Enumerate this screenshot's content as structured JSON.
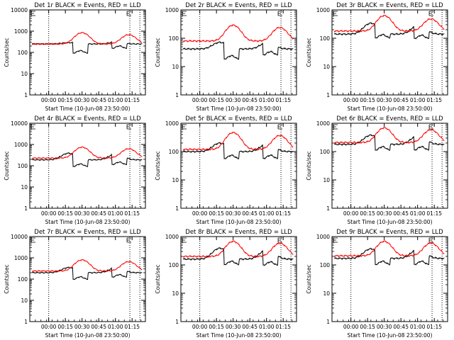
{
  "chart_data": [
    {
      "type": "line",
      "title": "Det 1r BLACK = Events, RED = LLD",
      "xlabel": "Start Time (10-Jun-08 23:50:00)",
      "ylabel": "Counts/sec",
      "y_scale": "log",
      "ylim": [
        1,
        10000
      ],
      "y_ticks": [
        "1",
        "10",
        "100",
        "1000",
        "10000"
      ],
      "x_ticks": [
        "00:00",
        "00:15",
        "00:30",
        "00:45",
        "01:00",
        "01:15"
      ],
      "xlim_minutes": [
        -7,
        97
      ],
      "vlines_minutes": [
        10,
        83,
        92
      ],
      "series": [
        {
          "color": "#000000",
          "base": 250,
          "gaps": [
            [
              32,
              45,
              90
            ],
            [
              67,
              80,
              150
            ]
          ],
          "wiggles": [
            [
              28,
              40
            ],
            [
              71,
              60
            ]
          ]
        },
        {
          "color": "#ff0000",
          "base": 250,
          "wiggles": [
            [
              40,
              600
            ],
            [
              82,
              430
            ]
          ]
        }
      ]
    },
    {
      "type": "line",
      "title": "Det 2r BLACK = Events, RED = LLD",
      "xlabel": "Start Time (10-Jun-08 23:50:00)",
      "ylabel": "Counts/sec",
      "y_scale": "log",
      "ylim": [
        1,
        1000
      ],
      "y_ticks": [
        "1",
        "10",
        "100",
        "1000"
      ],
      "x_ticks": [
        "00:00",
        "00:15",
        "00:30",
        "00:45",
        "01:00",
        "01:15"
      ],
      "xlim_minutes": [
        -7,
        97
      ],
      "vlines_minutes": [
        10,
        83,
        92
      ],
      "series": [
        {
          "color": "#000000",
          "base": 42,
          "gaps": [
            [
              32,
              45,
              18
            ],
            [
              67,
              80,
              25
            ]
          ],
          "wiggles": [
            [
              28,
              30
            ],
            [
              71,
              30
            ]
          ]
        },
        {
          "color": "#ff0000",
          "base": 80,
          "wiggles": [
            [
              40,
              210
            ],
            [
              82,
              160
            ]
          ]
        }
      ]
    },
    {
      "type": "line",
      "title": "Det 3r BLACK = Events, RED = LLD",
      "xlabel": "Start Time (10-Jun-08 23:50:00)",
      "ylabel": "Counts/sec",
      "y_scale": "log",
      "ylim": [
        1,
        1000
      ],
      "y_ticks": [
        "1",
        "10",
        "100",
        "1000"
      ],
      "x_ticks": [
        "00:00",
        "00:15",
        "00:30",
        "00:45",
        "01:00",
        "01:15"
      ],
      "xlim_minutes": [
        -7,
        97
      ],
      "vlines_minutes": [
        10,
        83,
        92
      ],
      "series": [
        {
          "color": "#000000",
          "base": 140,
          "gaps": [
            [
              32,
              45,
              100
            ],
            [
              67,
              80,
              95
            ]
          ],
          "wiggles": [
            [
              28,
              200
            ],
            [
              71,
              150
            ]
          ]
        },
        {
          "color": "#ff0000",
          "base": 180,
          "wiggles": [
            [
              40,
              450
            ],
            [
              82,
              300
            ]
          ]
        }
      ]
    },
    {
      "type": "line",
      "title": "Det 4r BLACK = Events, RED = LLD",
      "xlabel": "Start Time (10-Jun-08 23:50:00)",
      "ylabel": "Counts/sec",
      "y_scale": "log",
      "ylim": [
        1,
        10000
      ],
      "y_ticks": [
        "1",
        "10",
        "100",
        "1000",
        "10000"
      ],
      "x_ticks": [
        "00:00",
        "00:15",
        "00:30",
        "00:45",
        "01:00",
        "01:15"
      ],
      "xlim_minutes": [
        -7,
        97
      ],
      "vlines_minutes": [
        10,
        83,
        92
      ],
      "series": [
        {
          "color": "#000000",
          "base": 190,
          "gaps": [
            [
              32,
              45,
              90
            ],
            [
              67,
              80,
              110
            ]
          ],
          "wiggles": [
            [
              28,
              200
            ],
            [
              71,
              180
            ]
          ]
        },
        {
          "color": "#ff0000",
          "base": 230,
          "wiggles": [
            [
              40,
              520
            ],
            [
              82,
              400
            ]
          ]
        }
      ]
    },
    {
      "type": "line",
      "title": "Det 5r BLACK = Events, RED = LLD",
      "xlabel": "Start Time (10-Jun-08 23:50:00)",
      "ylabel": "Counts/sec",
      "y_scale": "log",
      "ylim": [
        1,
        1000
      ],
      "y_ticks": [
        "1",
        "10",
        "100",
        "1000"
      ],
      "x_ticks": [
        "00:00",
        "00:15",
        "00:30",
        "00:45",
        "01:00",
        "01:15"
      ],
      "xlim_minutes": [
        -7,
        97
      ],
      "vlines_minutes": [
        10,
        83,
        92
      ],
      "series": [
        {
          "color": "#000000",
          "base": 100,
          "gaps": [
            [
              32,
              45,
              55
            ],
            [
              67,
              80,
              55
            ]
          ],
          "wiggles": [
            [
              28,
              100
            ],
            [
              71,
              90
            ]
          ]
        },
        {
          "color": "#ff0000",
          "base": 120,
          "wiggles": [
            [
              40,
              350
            ],
            [
              82,
              250
            ]
          ]
        }
      ]
    },
    {
      "type": "line",
      "title": "Det 6r BLACK = Events, RED = LLD",
      "xlabel": "Start Time (10-Jun-08 23:50:00)",
      "ylabel": "Counts/sec",
      "y_scale": "log",
      "ylim": [
        1,
        1000
      ],
      "y_ticks": [
        "1",
        "10",
        "100",
        "1000"
      ],
      "x_ticks": [
        "00:00",
        "00:15",
        "00:30",
        "00:45",
        "01:00",
        "01:15"
      ],
      "xlim_minutes": [
        -7,
        97
      ],
      "vlines_minutes": [
        10,
        83,
        92
      ],
      "series": [
        {
          "color": "#000000",
          "base": 180,
          "gaps": [
            [
              32,
              45,
              110
            ],
            [
              67,
              80,
              110
            ]
          ],
          "wiggles": [
            [
              28,
              200
            ],
            [
              71,
              200
            ]
          ]
        },
        {
          "color": "#ff0000",
          "base": 210,
          "wiggles": [
            [
              40,
              480
            ],
            [
              82,
              380
            ]
          ]
        }
      ]
    },
    {
      "type": "line",
      "title": "Det 7r BLACK = Events, RED = LLD",
      "xlabel": "Start Time (10-Jun-08 23:50:00)",
      "ylabel": "Counts/sec",
      "y_scale": "log",
      "ylim": [
        1,
        10000
      ],
      "y_ticks": [
        "1",
        "10",
        "100",
        "1000",
        "10000"
      ],
      "x_ticks": [
        "00:00",
        "00:15",
        "00:30",
        "00:45",
        "01:00",
        "01:15"
      ],
      "xlim_minutes": [
        -7,
        97
      ],
      "vlines_minutes": [
        10,
        83,
        92
      ],
      "series": [
        {
          "color": "#000000",
          "base": 200,
          "gaps": [
            [
              32,
              45,
              95
            ],
            [
              67,
              80,
              120
            ]
          ],
          "wiggles": [
            [
              28,
              150
            ],
            [
              71,
              150
            ]
          ]
        },
        {
          "color": "#ff0000",
          "base": 240,
          "wiggles": [
            [
              40,
              560
            ],
            [
              82,
              420
            ]
          ]
        }
      ]
    },
    {
      "type": "line",
      "title": "Det 8r BLACK = Events, RED = LLD",
      "xlabel": "Start Time (10-Jun-08 23:50:00)",
      "ylabel": "Counts/sec",
      "y_scale": "log",
      "ylim": [
        1,
        1000
      ],
      "y_ticks": [
        "1",
        "10",
        "100",
        "1000"
      ],
      "x_ticks": [
        "00:00",
        "00:15",
        "00:30",
        "00:45",
        "01:00",
        "01:15"
      ],
      "xlim_minutes": [
        -7,
        97
      ],
      "vlines_minutes": [
        10,
        83,
        92
      ],
      "series": [
        {
          "color": "#000000",
          "base": 160,
          "gaps": [
            [
              32,
              45,
              100
            ],
            [
              67,
              80,
              95
            ]
          ],
          "wiggles": [
            [
              28,
              230
            ],
            [
              71,
              200
            ]
          ]
        },
        {
          "color": "#ff0000",
          "base": 200,
          "wiggles": [
            [
              40,
              480
            ],
            [
              82,
              380
            ]
          ]
        }
      ]
    },
    {
      "type": "line",
      "title": "Det 9r BLACK = Events, RED = LLD",
      "xlabel": "Start Time (10-Jun-08 23:50:00)",
      "ylabel": "Counts/sec",
      "y_scale": "log",
      "ylim": [
        1,
        1000
      ],
      "y_ticks": [
        "1",
        "10",
        "100",
        "1000"
      ],
      "x_ticks": [
        "00:00",
        "00:15",
        "00:30",
        "00:45",
        "01:00",
        "01:15"
      ],
      "xlim_minutes": [
        -7,
        97
      ],
      "vlines_minutes": [
        10,
        83,
        92
      ],
      "series": [
        {
          "color": "#000000",
          "base": 170,
          "gaps": [
            [
              32,
              45,
              100
            ],
            [
              67,
              80,
              100
            ]
          ],
          "wiggles": [
            [
              28,
              200
            ],
            [
              71,
              200
            ]
          ]
        },
        {
          "color": "#ff0000",
          "base": 210,
          "wiggles": [
            [
              40,
              470
            ],
            [
              82,
              380
            ]
          ]
        }
      ]
    }
  ]
}
